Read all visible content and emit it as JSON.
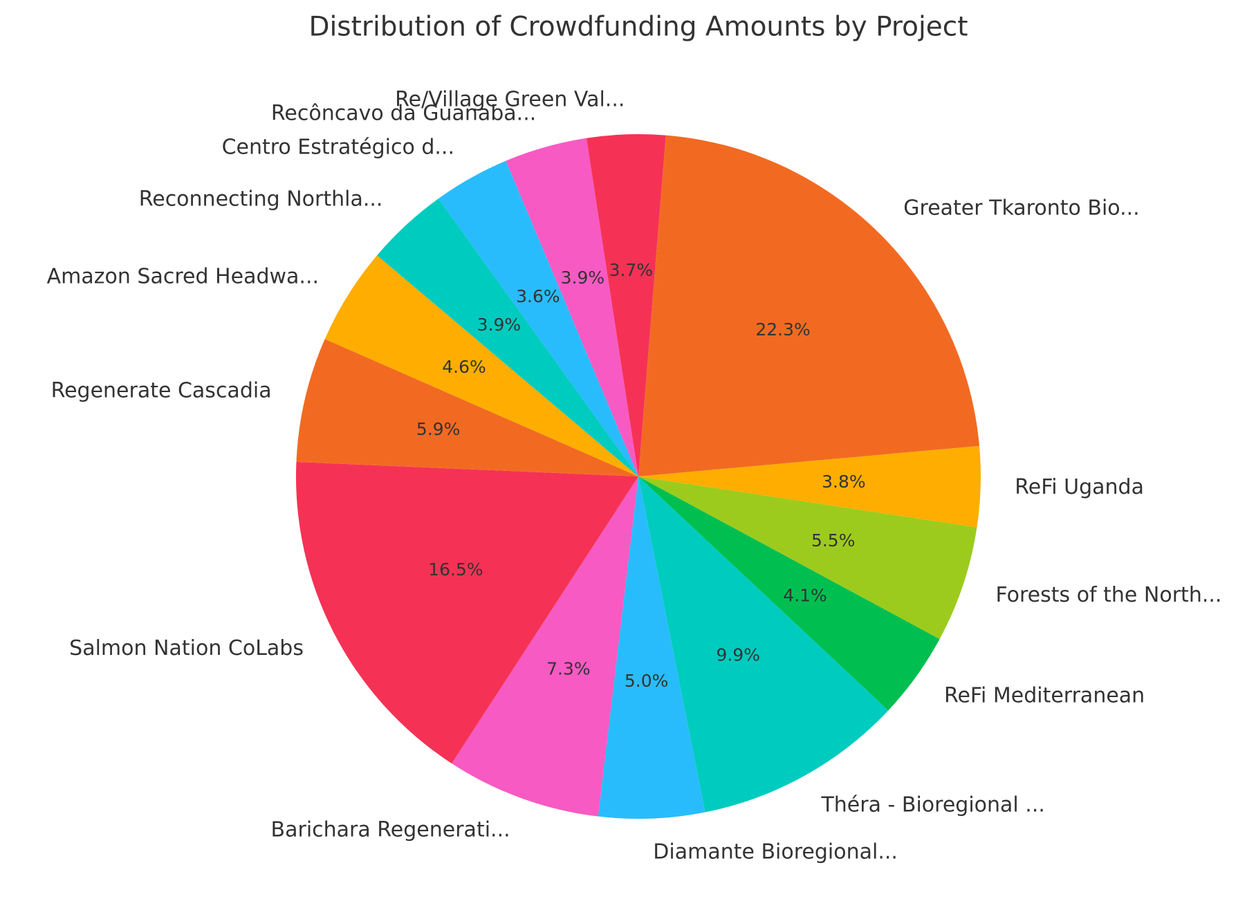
{
  "chart_data": {
    "type": "pie",
    "title": "Distribution of Crowdfunding Amounts by Project",
    "categories": [
      "Greater Tkaronto Bio...",
      "ReFi Uganda",
      "Forests of the North...",
      "ReFi Mediterranean",
      "Théra - Bioregional ...",
      "Diamante Bioregional...",
      "Barichara Regenerati...",
      "Salmon Nation CoLabs",
      "Regenerate Cascadia",
      "Amazon Sacred Headwa...",
      "Reconnecting Northla...",
      "Centro Estratégico d...",
      "Recôncavo da Guanaba...",
      "Re/Village Green Val..."
    ],
    "values": [
      22.3,
      3.8,
      5.5,
      4.1,
      9.9,
      5.0,
      7.3,
      16.5,
      5.9,
      4.6,
      3.9,
      3.6,
      3.9,
      3.7
    ],
    "value_labels": [
      "22.3%",
      "3.8%",
      "5.5%",
      "4.1%",
      "9.9%",
      "5.0%",
      "7.3%",
      "16.5%",
      "5.9%",
      "4.6%",
      "3.9%",
      "3.6%",
      "3.9%",
      "3.7%"
    ],
    "colors": [
      "#f26a22",
      "#ffae00",
      "#9dcb1d",
      "#00bf50",
      "#00cbbf",
      "#29bcfc",
      "#f85ac3",
      "#f53255",
      "#f26a22",
      "#ffae00",
      "#00cbbf",
      "#29bcfc",
      "#f85ac3",
      "#f53255"
    ]
  }
}
